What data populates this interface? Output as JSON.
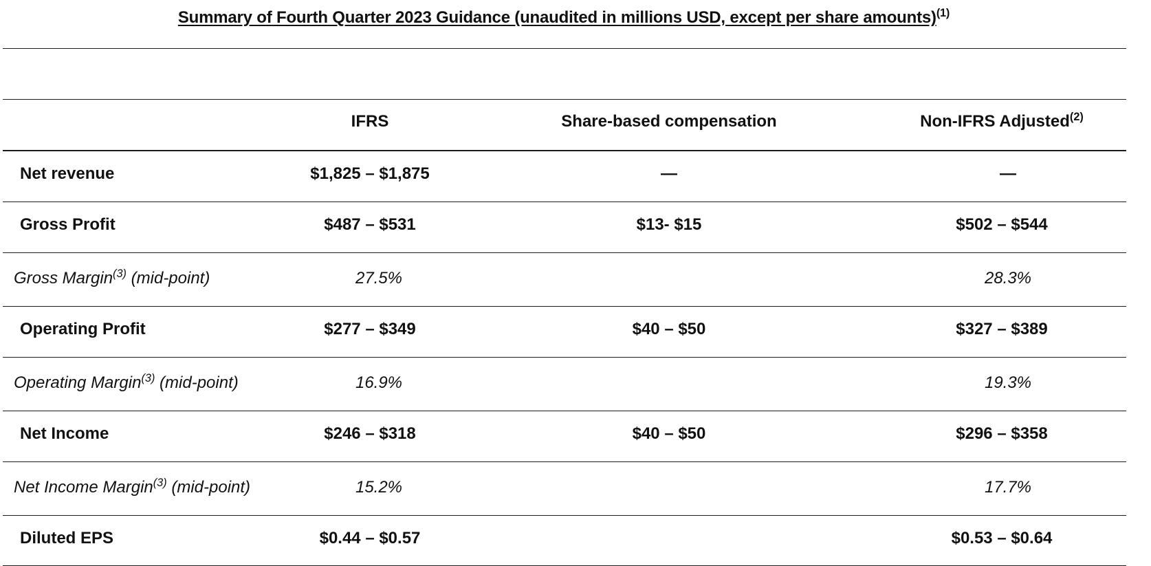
{
  "title": {
    "text": "Summary of Fourth Quarter 2023 Guidance (unaudited in millions USD, except per share amounts)",
    "footnote": "(1)"
  },
  "columns": {
    "ifrs": "IFRS",
    "sbc": "Share-based compensation",
    "non_ifrs": "Non-IFRS Adjusted",
    "non_ifrs_footnote": "(2)"
  },
  "rows": [
    {
      "label": "Net revenue",
      "ifrs": "$1,825 – $1,875",
      "sbc": "—",
      "non_ifrs": "—"
    },
    {
      "label": "Gross Profit",
      "ifrs": "$487 – $531",
      "sbc": "$13- $15",
      "non_ifrs": "$502 – $544"
    },
    {
      "label": "Gross Margin",
      "footnote": "(3)",
      "suffix": " (mid-point)",
      "ifrs": "27.5%",
      "sbc": "",
      "non_ifrs": "28.3%"
    },
    {
      "label": "Operating Profit",
      "ifrs": "$277 – $349",
      "sbc": "$40 – $50",
      "non_ifrs": "$327 – $389"
    },
    {
      "label": "Operating Margin",
      "footnote": "(3)",
      "suffix": " (mid-point)",
      "ifrs": "16.9%",
      "sbc": "",
      "non_ifrs": "19.3%"
    },
    {
      "label": "Net Income",
      "ifrs": "$246 – $318",
      "sbc": "$40 – $50",
      "non_ifrs": "$296 – $358"
    },
    {
      "label": "Net Income Margin",
      "footnote": "(3)",
      "suffix": " (mid-point)",
      "ifrs": "15.2%",
      "sbc": "",
      "non_ifrs": "17.7%"
    },
    {
      "label": "Diluted EPS",
      "ifrs": "$0.44 – $0.57",
      "sbc": "",
      "non_ifrs": "$0.53 – $0.64"
    }
  ]
}
